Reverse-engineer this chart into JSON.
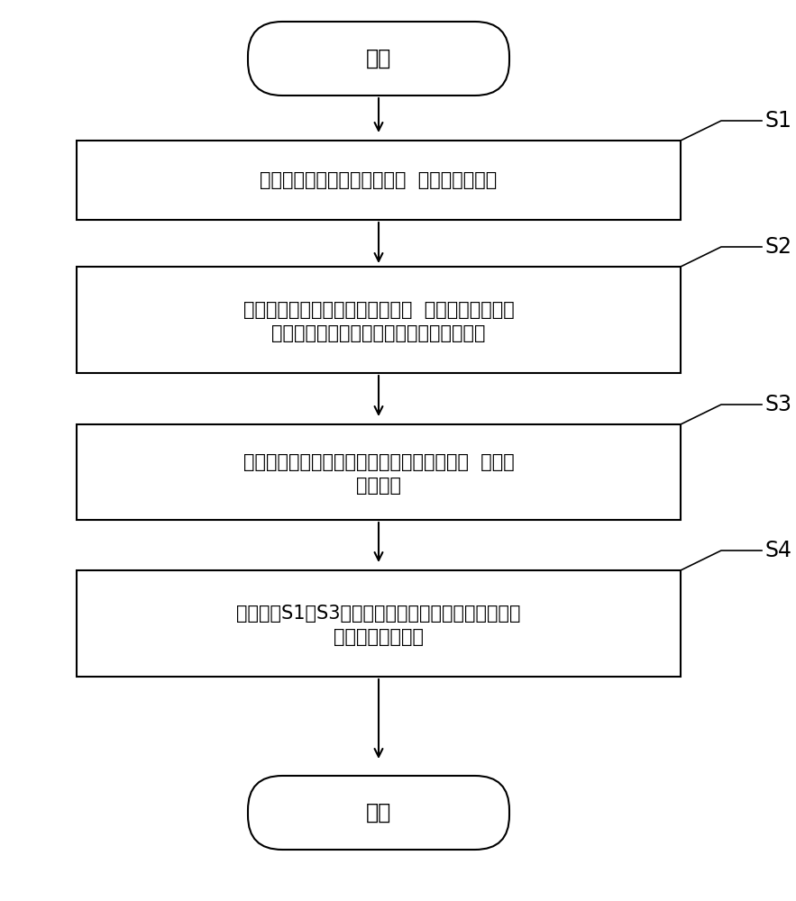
{
  "background_color": "#ffffff",
  "start_end_label": [
    "开始",
    "结束"
  ],
  "steps": [
    {
      "id": "S1",
      "lines": [
        "对现状沙堤依次进行形态改造  形成柳叶状沙堤"
      ]
    },
    {
      "id": "S2",
      "lines": [
        "在柳叶状沙堤的两侧进行石笼镶边  在石笼中扦插柳枝",
        "，并滞留来水挟带养分，形成柳叶堤栖息地"
      ]
    },
    {
      "id": "S3",
      "lines": [
        "在柳叶堤栖息地的堤首迎水坡面进行多层加固  并进行",
        "养分暂储"
      ]
    },
    {
      "id": "S4",
      "lines": [
        "使用步骤S1至S3所述的方法进行潴水聚盐，完成柳叶",
        "堤栖息地生境恢复"
      ]
    }
  ],
  "box_color": "#ffffff",
  "box_edge_color": "#000000",
  "text_color": "#000000",
  "arrow_color": "#000000",
  "label_color": "#000000",
  "font_size": 15,
  "label_font_size": 17,
  "step_label_font_size": 17
}
